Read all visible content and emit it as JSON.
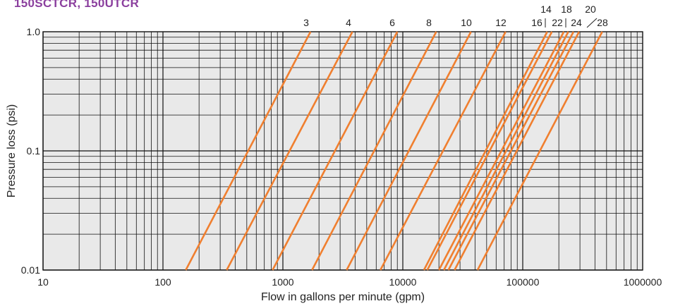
{
  "chart_heading": "150SCTCR, 150UTCR",
  "chart_data": {
    "type": "line",
    "xlabel": "Flow in gallons per minute (gpm)",
    "ylabel": "Pressure loss (psi)",
    "xscale": "log",
    "yscale": "log",
    "xlim": [
      10,
      1000000
    ],
    "ylim": [
      0.01,
      1.0
    ],
    "x_tick_labels": [
      "10",
      "100",
      "1000",
      "10000",
      "100000",
      "1000000"
    ],
    "y_tick_labels": [
      "0.01",
      "0.1",
      "1.0"
    ],
    "grid": true,
    "line_color": "#f07f2f",
    "series": [
      {
        "name": "3",
        "x": [
          155,
          1700
        ],
        "y": [
          0.01,
          1.0
        ]
      },
      {
        "name": "4",
        "x": [
          340,
          3800
        ],
        "y": [
          0.01,
          1.0
        ]
      },
      {
        "name": "6",
        "x": [
          820,
          9000
        ],
        "y": [
          0.01,
          1.0
        ]
      },
      {
        "name": "8",
        "x": [
          1750,
          19000
        ],
        "y": [
          0.01,
          1.0
        ]
      },
      {
        "name": "10",
        "x": [
          3400,
          37000
        ],
        "y": [
          0.01,
          1.0
        ]
      },
      {
        "name": "12",
        "x": [
          6500,
          72000
        ],
        "y": [
          0.01,
          1.0
        ]
      },
      {
        "name": "14",
        "x": [
          15000,
          160000
        ],
        "y": [
          0.01,
          1.0
        ]
      },
      {
        "name": "16",
        "x": [
          16000,
          175000
        ],
        "y": [
          0.01,
          1.0
        ]
      },
      {
        "name": "18",
        "x": [
          22000,
          240000
        ],
        "y": [
          0.01,
          1.0
        ]
      },
      {
        "name": "20",
        "x": [
          27000,
          295000
        ],
        "y": [
          0.01,
          1.0
        ]
      },
      {
        "name": "22",
        "x": [
          20000,
          220000
        ],
        "y": [
          0.01,
          1.0
        ]
      },
      {
        "name": "24",
        "x": [
          24000,
          265000
        ],
        "y": [
          0.01,
          1.0
        ]
      },
      {
        "name": "28",
        "x": [
          42000,
          460000
        ],
        "y": [
          0.01,
          1.0
        ]
      }
    ]
  }
}
